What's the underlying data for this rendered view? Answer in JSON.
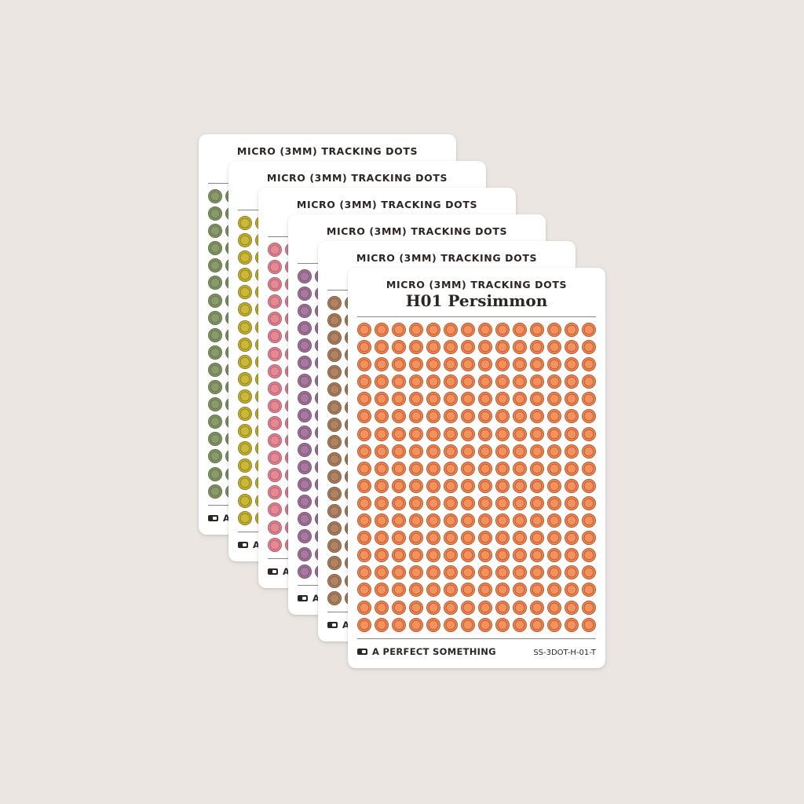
{
  "sheets": [
    {
      "header": "MICRO (3MM) TRACKING DOTS",
      "dot_fill": "#8a9a6b",
      "dot_ring": "#5d6e46",
      "brand_visible": "A"
    },
    {
      "header": "MICRO (3MM) TRACKING DOTS",
      "dot_fill": "#c9b83a",
      "dot_ring": "#8e7f1a",
      "brand_visible": "A"
    },
    {
      "header": "MICRO (3MM) TRACKING DOTS",
      "dot_fill": "#e48a97",
      "dot_ring": "#b35b6a",
      "brand_visible": "A"
    },
    {
      "header": "MICRO (3MM) TRACKING DOTS",
      "dot_fill": "#a8799f",
      "dot_ring": "#76506f",
      "brand_visible": "A"
    },
    {
      "header": "MICRO (3MM) TRACKING DOTS",
      "dot_fill": "#b08463",
      "dot_ring": "#7f5a3f",
      "brand_visible": "A"
    }
  ],
  "front": {
    "header": "MICRO (3MM) TRACKING DOTS",
    "title": "H01 Persimmon",
    "brand": "A PERFECT SOMETHING",
    "sku": "SS-3DOT-H-01-T",
    "dot_fill": "#f3915f",
    "dot_ring": "#b8552b",
    "dot_rows": 18,
    "dot_cols": 14
  }
}
